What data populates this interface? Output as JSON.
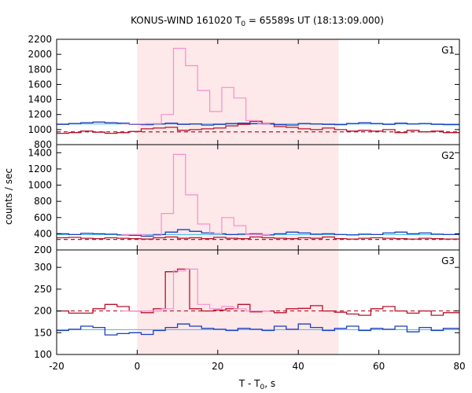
{
  "chart_data": {
    "type": "line",
    "title_parts": [
      "KONUS-WIND 161020 T",
      "0",
      " = 65589s UT (18:13:09.000)"
    ],
    "ylabel": "counts / sec",
    "xlabel_parts": [
      "T - T",
      "0",
      ", s"
    ],
    "xlim": [
      -20,
      80
    ],
    "xticks": [
      -20,
      0,
      20,
      40,
      60,
      80
    ],
    "highlight": {
      "x0": 0,
      "x1": 50,
      "color": "#fde8ea"
    },
    "colors": {
      "pink": "#f78fcf",
      "blue": "#1d3fbf",
      "red": "#b8132a",
      "cyan": "#4fc3e8",
      "dashed": "#b8132a"
    },
    "panels": [
      {
        "label": "G1",
        "ylim": [
          800,
          2200
        ],
        "yticks": [
          800,
          1000,
          1200,
          1400,
          1600,
          1800,
          2000,
          2200
        ],
        "background_level": 970,
        "fit_level": 1075,
        "pink": {
          "x": [
            -3.9,
            2.0,
            6.0,
            9.0,
            12.0,
            15.0,
            18.0,
            21.0,
            24.0,
            27.0,
            30.0
          ],
          "y": [
            1075,
            1080,
            1200,
            2080,
            1850,
            1520,
            1240,
            1560,
            1420,
            1120,
            1075
          ]
        },
        "blue": {
          "x": [
            -20,
            -17,
            -14,
            -11,
            -8,
            -5,
            -2,
            1,
            4,
            7,
            10,
            13,
            16,
            19,
            22,
            25,
            28,
            31,
            34,
            37,
            40,
            43,
            46,
            49,
            52,
            55,
            58,
            61,
            64,
            67,
            70,
            73,
            76,
            79
          ],
          "y": [
            1070,
            1080,
            1090,
            1100,
            1090,
            1085,
            1070,
            1065,
            1075,
            1085,
            1070,
            1075,
            1060,
            1070,
            1080,
            1085,
            1080,
            1075,
            1065,
            1060,
            1080,
            1075,
            1070,
            1065,
            1080,
            1090,
            1080,
            1070,
            1085,
            1075,
            1080,
            1070,
            1065,
            1065
          ]
        },
        "red": {
          "x": [
            -20,
            -17,
            -14,
            -11,
            -8,
            -5,
            -2,
            1,
            4,
            7,
            10,
            13,
            16,
            19,
            22,
            25,
            28,
            31,
            34,
            37,
            40,
            43,
            46,
            49,
            52,
            55,
            58,
            61,
            64,
            67,
            70,
            73,
            76,
            79
          ],
          "y": [
            950,
            960,
            980,
            965,
            950,
            960,
            975,
            1010,
            1020,
            1030,
            990,
            1000,
            1010,
            1020,
            1050,
            1070,
            1110,
            1080,
            1040,
            1030,
            1010,
            1000,
            1020,
            1000,
            980,
            990,
            980,
            1000,
            960,
            990,
            970,
            980,
            960,
            960
          ]
        }
      },
      {
        "label": "G2",
        "ylim": [
          200,
          1500
        ],
        "yticks": [
          200,
          400,
          600,
          800,
          1000,
          1200,
          1400
        ],
        "background_level": 330,
        "fit_level": 390,
        "pink": {
          "x": [
            -3.9,
            2.0,
            6.0,
            9.0,
            12.0,
            15.0,
            18.0,
            21.0,
            24.0,
            27.0,
            30.0
          ],
          "y": [
            390,
            380,
            650,
            1380,
            880,
            520,
            400,
            600,
            500,
            390,
            390
          ]
        },
        "blue": {
          "x": [
            -20,
            -17,
            -14,
            -11,
            -8,
            -5,
            -2,
            1,
            4,
            7,
            10,
            13,
            16,
            19,
            22,
            25,
            28,
            31,
            34,
            37,
            40,
            43,
            46,
            49,
            52,
            55,
            58,
            61,
            64,
            67,
            70,
            73,
            76,
            79
          ],
          "y": [
            400,
            390,
            405,
            400,
            395,
            385,
            380,
            370,
            390,
            420,
            450,
            430,
            410,
            400,
            390,
            395,
            400,
            385,
            400,
            420,
            410,
            395,
            400,
            390,
            385,
            395,
            390,
            410,
            420,
            400,
            410,
            395,
            390,
            390
          ]
        },
        "red": {
          "x": [
            -20,
            -17,
            -14,
            -11,
            -8,
            -5,
            -2,
            1,
            4,
            7,
            10,
            13,
            16,
            19,
            22,
            25,
            28,
            31,
            34,
            37,
            40,
            43,
            46,
            49,
            52,
            55,
            58,
            61,
            64,
            67,
            70,
            73,
            76,
            79
          ],
          "y": [
            350,
            355,
            345,
            340,
            350,
            345,
            340,
            335,
            350,
            360,
            345,
            350,
            340,
            355,
            345,
            340,
            360,
            350,
            345,
            340,
            350,
            345,
            360,
            340,
            335,
            345,
            350,
            345,
            340,
            335,
            345,
            340,
            335,
            335
          ]
        }
      },
      {
        "label": "G3",
        "ylim": [
          100,
          340
        ],
        "yticks": [
          100,
          150,
          200,
          250,
          300
        ],
        "background_level": 200,
        "fit_level": 157,
        "pink": {
          "x": [
            -3.9,
            2.0,
            6.0,
            9.0,
            12.0,
            15.0,
            18.0,
            21.0,
            24.0,
            27.0,
            30.0
          ],
          "y": [
            200,
            200,
            205,
            292,
            296,
            215,
            205,
            210,
            205,
            200,
            200
          ]
        },
        "blue": {
          "x": [
            -20,
            -17,
            -14,
            -11,
            -8,
            -5,
            -2,
            1,
            4,
            7,
            10,
            13,
            16,
            19,
            22,
            25,
            28,
            31,
            34,
            37,
            40,
            43,
            46,
            49,
            52,
            55,
            58,
            61,
            64,
            67,
            70,
            73,
            76,
            79
          ],
          "y": [
            155,
            158,
            165,
            162,
            145,
            148,
            150,
            146,
            155,
            162,
            170,
            165,
            160,
            158,
            155,
            160,
            158,
            155,
            165,
            158,
            170,
            162,
            155,
            160,
            165,
            155,
            160,
            158,
            165,
            152,
            162,
            155,
            160,
            160
          ]
        },
        "red": {
          "x": [
            -20,
            -17,
            -14,
            -11,
            -8,
            -5,
            -2,
            1,
            4,
            7,
            10,
            13,
            16,
            19,
            22,
            25,
            28,
            31,
            34,
            37,
            40,
            43,
            46,
            49,
            52,
            55,
            58,
            61,
            64,
            67,
            70,
            73,
            76,
            79
          ],
          "y": [
            200,
            195,
            195,
            205,
            215,
            210,
            200,
            196,
            205,
            290,
            296,
            205,
            200,
            202,
            205,
            215,
            198,
            200,
            196,
            205,
            206,
            212,
            200,
            197,
            193,
            190,
            205,
            210,
            200,
            195,
            200,
            190,
            196,
            196
          ]
        }
      }
    ]
  }
}
